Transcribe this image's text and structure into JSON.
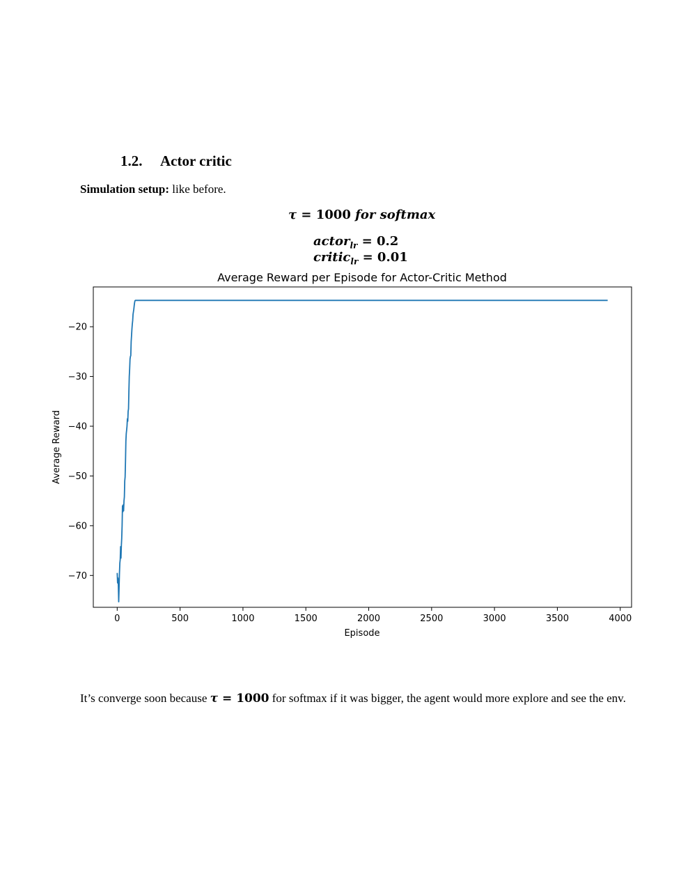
{
  "section": {
    "number": "1.2.",
    "title": "Actor critic"
  },
  "setup": {
    "label": "Simulation setup:",
    "text": " like before."
  },
  "equations": {
    "tau": {
      "sym": "τ",
      "eq": " = ",
      "val": "1000",
      "rest": " for softmax"
    },
    "actor": {
      "name": "actor",
      "sub": "lr",
      "eq": " = ",
      "val": "0.2"
    },
    "critic": {
      "name": "critic",
      "sub": "lr",
      "eq": " = ",
      "val": "0.01"
    }
  },
  "paragraph": {
    "before": "It’s converge soon because ",
    "math_sym": "τ",
    "math_eq": " = ",
    "math_val": "1000",
    "after": " for softmax if it was bigger, the agent would more explore and see the env."
  },
  "chart_data": {
    "type": "line",
    "title": "Average Reward per Episode for Actor-Critic Method",
    "xlabel": "Episode",
    "ylabel": "Average Reward",
    "xlim": [
      -190,
      4090
    ],
    "ylim": [
      -76.4,
      -12.0
    ],
    "xticks": [
      0,
      500,
      1000,
      1500,
      2000,
      2500,
      3000,
      3500,
      4000
    ],
    "yticks": [
      -20,
      -30,
      -40,
      -50,
      -60,
      -70
    ],
    "grid": false,
    "line_color": "#1f77b4",
    "series": [
      {
        "x": [
          0,
          3,
          6,
          9,
          12,
          15,
          18,
          21,
          24,
          27,
          30,
          33,
          36,
          39,
          42,
          45,
          48,
          51,
          54,
          57,
          60,
          63,
          66,
          69,
          72,
          75,
          78,
          81,
          84,
          87,
          90,
          93,
          96,
          99,
          102,
          105,
          108,
          111,
          114,
          117,
          120,
          123,
          126,
          129,
          132,
          135,
          138,
          141,
          144,
          147,
          150,
          153,
          156,
          3900
        ],
        "y": [
          -69.5,
          -71.5,
          -70.5,
          -72.0,
          -75.3,
          -72.5,
          -69.5,
          -67.5,
          -66.8,
          -64.2,
          -66.5,
          -64.0,
          -62.5,
          -60.0,
          -56.0,
          -57.2,
          -55.8,
          -57.0,
          -55.0,
          -54.2,
          -51.0,
          -50.2,
          -47.0,
          -43.0,
          -41.5,
          -40.8,
          -40.0,
          -38.5,
          -39.0,
          -37.0,
          -36.5,
          -33.0,
          -30.0,
          -28.5,
          -26.5,
          -26.0,
          -25.8,
          -23.0,
          -21.8,
          -20.5,
          -19.5,
          -18.8,
          -17.5,
          -17.0,
          -16.5,
          -15.8,
          -15.2,
          -14.8,
          -14.7,
          -14.7,
          -14.7,
          -14.7,
          -14.7,
          -14.7
        ]
      }
    ]
  }
}
